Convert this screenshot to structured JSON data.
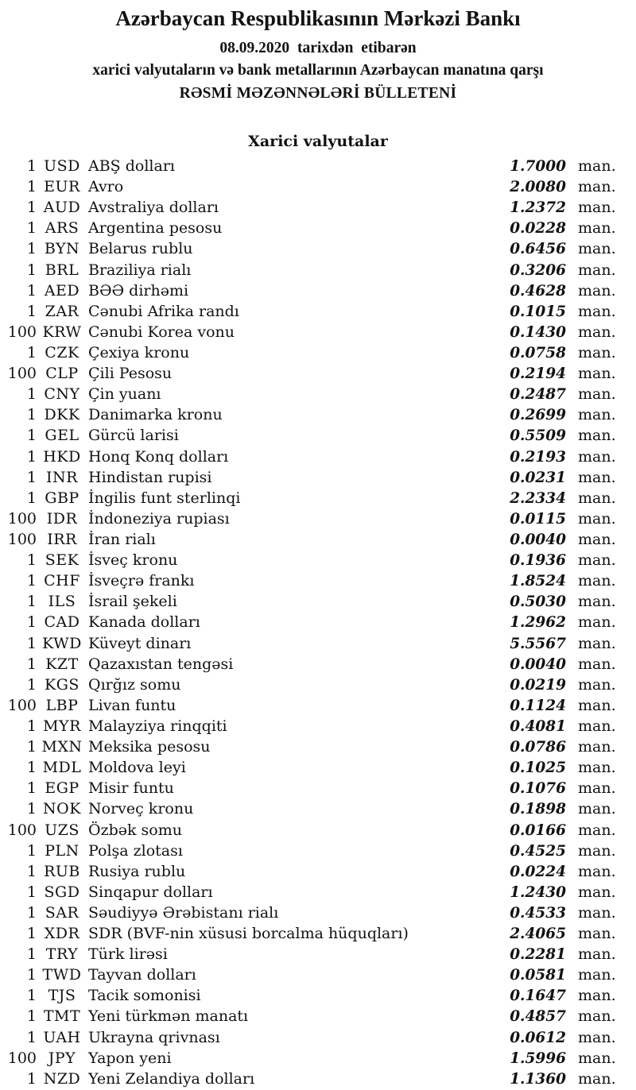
{
  "header": {
    "title": "Azərbaycan Respublikasının Mərkəzi Bankı",
    "date_line": "08.09.2020 tarixdən etibarən",
    "subtitle": "xarici valyutaların və bank metallarının Azərbaycan manatına qarşı",
    "bulletin_title": "RƏSMİ MƏZƏNNƏLƏRİ BÜLLETENİ"
  },
  "section": {
    "title": "Xarici valyutalar"
  },
  "unit_suffix": "man.",
  "rates": [
    {
      "qty": "1",
      "code": "USD",
      "name": "ABŞ dolları",
      "rate": "1.7000"
    },
    {
      "qty": "1",
      "code": "EUR",
      "name": "Avro",
      "rate": "2.0080"
    },
    {
      "qty": "1",
      "code": "AUD",
      "name": "Avstraliya dolları",
      "rate": "1.2372"
    },
    {
      "qty": "1",
      "code": "ARS",
      "name": "Argentina pesosu",
      "rate": "0.0228"
    },
    {
      "qty": "1",
      "code": "BYN",
      "name": "Belarus rublu",
      "rate": "0.6456"
    },
    {
      "qty": "1",
      "code": "BRL",
      "name": "Braziliya rialı",
      "rate": "0.3206"
    },
    {
      "qty": "1",
      "code": "AED",
      "name": "BƏƏ dirhəmi",
      "rate": "0.4628"
    },
    {
      "qty": "1",
      "code": "ZAR",
      "name": "Cənubi Afrika randı",
      "rate": "0.1015"
    },
    {
      "qty": "100",
      "code": "KRW",
      "name": "Cənubi Korea vonu",
      "rate": "0.1430"
    },
    {
      "qty": "1",
      "code": "CZK",
      "name": "Çexiya kronu",
      "rate": "0.0758"
    },
    {
      "qty": "100",
      "code": "CLP",
      "name": "Çili Pesosu",
      "rate": "0.2194"
    },
    {
      "qty": "1",
      "code": "CNY",
      "name": "Çin yuanı",
      "rate": "0.2487"
    },
    {
      "qty": "1",
      "code": "DKK",
      "name": "Danimarka kronu",
      "rate": "0.2699"
    },
    {
      "qty": "1",
      "code": "GEL",
      "name": "Gürcü larisi",
      "rate": "0.5509"
    },
    {
      "qty": "1",
      "code": "HKD",
      "name": "Honq Konq dolları",
      "rate": "0.2193"
    },
    {
      "qty": "1",
      "code": "INR",
      "name": "Hindistan rupisi",
      "rate": "0.0231"
    },
    {
      "qty": "1",
      "code": "GBP",
      "name": "İngilis funt sterlinqi",
      "rate": "2.2334"
    },
    {
      "qty": "100",
      "code": "IDR",
      "name": "İndoneziya rupiası",
      "rate": "0.0115"
    },
    {
      "qty": "100",
      "code": "IRR",
      "name": "İran rialı",
      "rate": "0.0040"
    },
    {
      "qty": "1",
      "code": "SEK",
      "name": "İsveç kronu",
      "rate": "0.1936"
    },
    {
      "qty": "1",
      "code": "CHF",
      "name": "İsveçrə frankı",
      "rate": "1.8524"
    },
    {
      "qty": "1",
      "code": "ILS",
      "name": "İsrail şekeli",
      "rate": "0.5030"
    },
    {
      "qty": "1",
      "code": "CAD",
      "name": "Kanada dolları",
      "rate": "1.2962"
    },
    {
      "qty": "1",
      "code": "KWD",
      "name": "Küveyt dinarı",
      "rate": "5.5567"
    },
    {
      "qty": "1",
      "code": "KZT",
      "name": "Qazaxıstan tengəsi",
      "rate": "0.0040"
    },
    {
      "qty": "1",
      "code": "KGS",
      "name": "Qırğız somu",
      "rate": "0.0219"
    },
    {
      "qty": "100",
      "code": "LBP",
      "name": "Livan funtu",
      "rate": "0.1124"
    },
    {
      "qty": "1",
      "code": "MYR",
      "name": "Malayziya rinqqiti",
      "rate": "0.4081"
    },
    {
      "qty": "1",
      "code": "MXN",
      "name": "Meksika pesosu",
      "rate": "0.0786"
    },
    {
      "qty": "1",
      "code": "MDL",
      "name": "Moldova leyi",
      "rate": "0.1025"
    },
    {
      "qty": "1",
      "code": "EGP",
      "name": "Misir funtu",
      "rate": "0.1076"
    },
    {
      "qty": "1",
      "code": "NOK",
      "name": "Norveç kronu",
      "rate": "0.1898"
    },
    {
      "qty": "100",
      "code": "UZS",
      "name": "Özbək somu",
      "rate": "0.0166"
    },
    {
      "qty": "1",
      "code": "PLN",
      "name": "Polşa zlotası",
      "rate": "0.4525"
    },
    {
      "qty": "1",
      "code": "RUB",
      "name": "Rusiya rublu",
      "rate": "0.0224"
    },
    {
      "qty": "1",
      "code": "SGD",
      "name": "Sinqapur dolları",
      "rate": "1.2430"
    },
    {
      "qty": "1",
      "code": "SAR",
      "name": "Səudiyyə Ərəbistanı rialı",
      "rate": "0.4533"
    },
    {
      "qty": "1",
      "code": "XDR",
      "name": "SDR (BVF-nin xüsusi borcalma hüquqları)",
      "rate": "2.4065"
    },
    {
      "qty": "1",
      "code": "TRY",
      "name": "Türk lirəsi",
      "rate": "0.2281"
    },
    {
      "qty": "1",
      "code": "TWD",
      "name": "Tayvan dolları",
      "rate": "0.0581"
    },
    {
      "qty": "1",
      "code": "TJS",
      "name": "Tacik somonisi",
      "rate": "0.1647"
    },
    {
      "qty": "1",
      "code": "TMT",
      "name": "Yeni türkmən manatı",
      "rate": "0.4857"
    },
    {
      "qty": "1",
      "code": "UAH",
      "name": "Ukrayna qrivnası",
      "rate": "0.0612"
    },
    {
      "qty": "100",
      "code": "JPY",
      "name": "Yapon yeni",
      "rate": "1.5996"
    },
    {
      "qty": "1",
      "code": "NZD",
      "name": "Yeni Zelandiya dolları",
      "rate": "1.1360"
    }
  ],
  "colors": {
    "text": "#121212",
    "background": "#ffffff"
  }
}
